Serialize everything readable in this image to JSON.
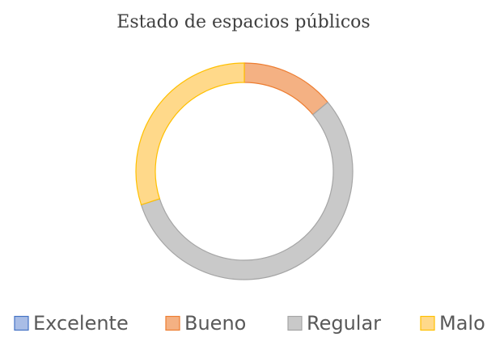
{
  "chart_data": {
    "type": "donut",
    "title": "Estado de espacios públicos",
    "categories": [
      "Excelente",
      "Bueno",
      "Regular",
      "Malo"
    ],
    "values": [
      0,
      14,
      56,
      30
    ],
    "colors": [
      "#a9bde6",
      "#f4b183",
      "#c9c9c9",
      "#ffd98a"
    ],
    "edge_colors": [
      "#4472c4",
      "#ed7d31",
      "#a5a5a5",
      "#ffc000"
    ],
    "legend": "bottom"
  }
}
